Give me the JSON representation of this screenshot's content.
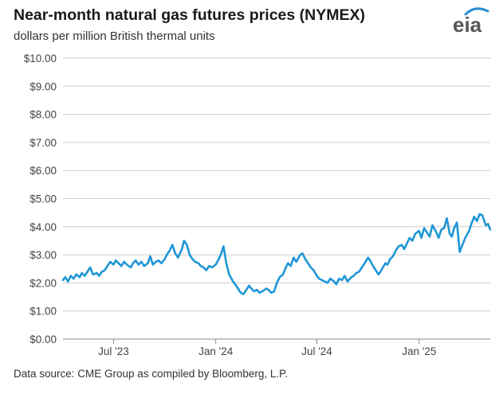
{
  "chart_data": {
    "type": "line",
    "title": "Near-month natural gas futures prices (NYMEX)",
    "subtitle": "dollars per million British thermal units",
    "source": "Data source: CME Group as compiled by Bloomberg, L.P.",
    "logo_text": "eia",
    "line_color": "#1f96d6",
    "grid": true,
    "ylim": [
      0,
      10
    ],
    "xlim": [
      "2023-04-01",
      "2025-05-09"
    ],
    "y_ticks": [
      {
        "value": 0,
        "label": "$0.00"
      },
      {
        "value": 1,
        "label": "$1.00"
      },
      {
        "value": 2,
        "label": "$2.00"
      },
      {
        "value": 3,
        "label": "$3.00"
      },
      {
        "value": 4,
        "label": "$4.00"
      },
      {
        "value": 5,
        "label": "$5.00"
      },
      {
        "value": 6,
        "label": "$6.00"
      },
      {
        "value": 7,
        "label": "$7.00"
      },
      {
        "value": 8,
        "label": "$8.00"
      },
      {
        "value": 9,
        "label": "$9.00"
      },
      {
        "value": 10,
        "label": "$10.00"
      }
    ],
    "x_ticks": [
      {
        "date": "2023-07-01",
        "label": "Jul '23"
      },
      {
        "date": "2024-01-01",
        "label": "Jan '24"
      },
      {
        "date": "2024-07-01",
        "label": "Jul '24"
      },
      {
        "date": "2025-01-01",
        "label": "Jan '25"
      }
    ],
    "series": [
      {
        "x": [
          "2023-04-01",
          "2023-04-05",
          "2023-04-10",
          "2023-04-15",
          "2023-04-20",
          "2023-04-25",
          "2023-05-01",
          "2023-05-05",
          "2023-05-10",
          "2023-05-15",
          "2023-05-20",
          "2023-05-25",
          "2023-06-01",
          "2023-06-05",
          "2023-06-10",
          "2023-06-15",
          "2023-06-20",
          "2023-06-25",
          "2023-07-01",
          "2023-07-05",
          "2023-07-10",
          "2023-07-15",
          "2023-07-20",
          "2023-07-25",
          "2023-08-01",
          "2023-08-05",
          "2023-08-10",
          "2023-08-15",
          "2023-08-20",
          "2023-08-25",
          "2023-09-01",
          "2023-09-05",
          "2023-09-10",
          "2023-09-15",
          "2023-09-20",
          "2023-09-25",
          "2023-10-01",
          "2023-10-05",
          "2023-10-10",
          "2023-10-15",
          "2023-10-20",
          "2023-10-25",
          "2023-11-01",
          "2023-11-05",
          "2023-11-10",
          "2023-11-15",
          "2023-11-20",
          "2023-11-25",
          "2023-12-01",
          "2023-12-05",
          "2023-12-10",
          "2023-12-15",
          "2023-12-20",
          "2023-12-25",
          "2024-01-01",
          "2024-01-05",
          "2024-01-10",
          "2024-01-15",
          "2024-01-20",
          "2024-01-25",
          "2024-02-01",
          "2024-02-05",
          "2024-02-10",
          "2024-02-15",
          "2024-02-20",
          "2024-02-25",
          "2024-03-01",
          "2024-03-05",
          "2024-03-10",
          "2024-03-15",
          "2024-03-20",
          "2024-03-25",
          "2024-04-01",
          "2024-04-05",
          "2024-04-10",
          "2024-04-15",
          "2024-04-20",
          "2024-04-25",
          "2024-05-01",
          "2024-05-05",
          "2024-05-10",
          "2024-05-15",
          "2024-05-20",
          "2024-05-25",
          "2024-06-01",
          "2024-06-05",
          "2024-06-10",
          "2024-06-15",
          "2024-06-20",
          "2024-06-25",
          "2024-07-01",
          "2024-07-05",
          "2024-07-10",
          "2024-07-15",
          "2024-07-20",
          "2024-07-25",
          "2024-08-01",
          "2024-08-05",
          "2024-08-10",
          "2024-08-15",
          "2024-08-20",
          "2024-08-25",
          "2024-09-01",
          "2024-09-05",
          "2024-09-10",
          "2024-09-15",
          "2024-09-20",
          "2024-09-25",
          "2024-10-01",
          "2024-10-05",
          "2024-10-10",
          "2024-10-15",
          "2024-10-20",
          "2024-10-25",
          "2024-11-01",
          "2024-11-05",
          "2024-11-10",
          "2024-11-15",
          "2024-11-20",
          "2024-11-25",
          "2024-12-01",
          "2024-12-05",
          "2024-12-10",
          "2024-12-15",
          "2024-12-20",
          "2024-12-25",
          "2025-01-01",
          "2025-01-05",
          "2025-01-10",
          "2025-01-15",
          "2025-01-20",
          "2025-01-25",
          "2025-02-01",
          "2025-02-05",
          "2025-02-10",
          "2025-02-15",
          "2025-02-20",
          "2025-02-25",
          "2025-03-01",
          "2025-03-05",
          "2025-03-10",
          "2025-03-15",
          "2025-03-20",
          "2025-03-25",
          "2025-04-01",
          "2025-04-05",
          "2025-04-10",
          "2025-04-15",
          "2025-04-20",
          "2025-04-25",
          "2025-05-01",
          "2025-05-05",
          "2025-05-09"
        ],
        "y": [
          2.1,
          2.2,
          2.05,
          2.25,
          2.15,
          2.3,
          2.2,
          2.35,
          2.25,
          2.4,
          2.55,
          2.3,
          2.35,
          2.25,
          2.4,
          2.45,
          2.6,
          2.75,
          2.65,
          2.8,
          2.7,
          2.6,
          2.75,
          2.65,
          2.55,
          2.7,
          2.8,
          2.65,
          2.75,
          2.6,
          2.7,
          2.95,
          2.65,
          2.75,
          2.8,
          2.7,
          2.85,
          3.0,
          3.15,
          3.35,
          3.05,
          2.9,
          3.2,
          3.5,
          3.35,
          3.0,
          2.85,
          2.75,
          2.7,
          2.6,
          2.55,
          2.45,
          2.6,
          2.55,
          2.65,
          2.8,
          3.0,
          3.3,
          2.7,
          2.3,
          2.05,
          1.95,
          1.8,
          1.65,
          1.6,
          1.75,
          1.9,
          1.8,
          1.7,
          1.75,
          1.65,
          1.7,
          1.8,
          1.75,
          1.65,
          1.7,
          2.0,
          2.2,
          2.3,
          2.5,
          2.7,
          2.6,
          2.9,
          2.75,
          3.0,
          3.05,
          2.85,
          2.7,
          2.55,
          2.45,
          2.25,
          2.15,
          2.1,
          2.05,
          2.0,
          2.15,
          2.05,
          1.95,
          2.15,
          2.1,
          2.25,
          2.05,
          2.2,
          2.25,
          2.35,
          2.4,
          2.55,
          2.7,
          2.9,
          2.8,
          2.6,
          2.45,
          2.3,
          2.45,
          2.7,
          2.65,
          2.85,
          2.95,
          3.15,
          3.3,
          3.35,
          3.2,
          3.4,
          3.6,
          3.5,
          3.75,
          3.85,
          3.6,
          3.95,
          3.8,
          3.65,
          4.05,
          3.8,
          3.6,
          3.9,
          3.95,
          4.3,
          3.75,
          3.65,
          3.95,
          4.15,
          3.1,
          3.35,
          3.6,
          3.85,
          4.1,
          4.35,
          4.2,
          4.45,
          4.4,
          4.05,
          4.1,
          3.9
        ]
      }
    ]
  }
}
